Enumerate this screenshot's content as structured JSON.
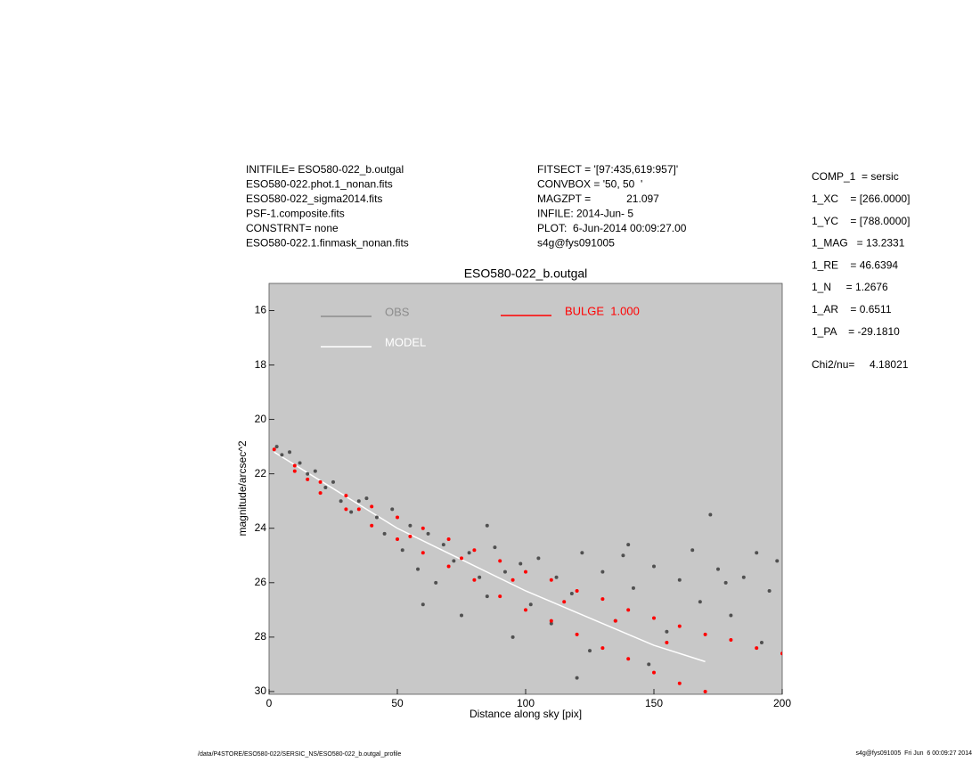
{
  "header": {
    "left": [
      "INITFILE= ESO580-022_b.outgal",
      "ESO580-022.phot.1_nonan.fits",
      "ESO580-022_sigma2014.fits",
      "PSF-1.composite.fits",
      "CONSTRNT= none",
      "ESO580-022.1.finmask_nonan.fits"
    ],
    "middle": [
      "FITSECT = '[97:435,619:957]'",
      "CONVBOX = '50, 50  '",
      "MAGZPT =            21.097",
      "INFILE: 2014-Jun- 5",
      "PLOT:  6-Jun-2014 00:09:27.00",
      "s4g@fys091005"
    ]
  },
  "parameters": [
    "COMP_1  = sersic",
    "1_XC    = [266.0000]",
    "1_YC    = [788.0000]",
    "1_MAG   = 13.2331",
    "1_RE    = 46.6394",
    "1_N     = 1.2676",
    "1_AR    = 0.6511",
    "1_PA    = -29.1810"
  ],
  "fit": "Chi2/nu=     4.18021",
  "footer": {
    "left": "/data/P4STORE/ESO580-022/SERSIC_NS/ESO580-022_b.outgal_profile",
    "right": "s4g@fys091005  Fri Jun  6 00:09:27 2014"
  },
  "chart_data": {
    "type": "scatter",
    "title": "ESO580-022_b.outgal",
    "xlabel": "Distance along sky [pix]",
    "ylabel": "magnitude/arcsec^2",
    "xlim": [
      0,
      200
    ],
    "xticks": [
      0,
      50,
      100,
      150,
      200
    ],
    "ylim": [
      15,
      30.1
    ],
    "yticks": [
      16,
      18,
      20,
      22,
      24,
      26,
      28,
      30
    ],
    "y_inverted": true,
    "background": "#c8c8c8",
    "series": [
      {
        "name": "OBS",
        "color": "#505050",
        "legend_color": "#8c8c8c",
        "mark": "dot",
        "x": [
          3,
          5,
          8,
          12,
          15,
          18,
          22,
          25,
          28,
          32,
          35,
          38,
          42,
          45,
          48,
          52,
          55,
          58,
          62,
          65,
          68,
          72,
          75,
          78,
          82,
          85,
          88,
          92,
          95,
          98,
          102,
          105,
          110,
          112,
          118,
          122,
          125,
          130,
          135,
          138,
          142,
          148,
          150,
          155,
          160,
          165,
          168,
          172,
          175,
          180,
          185,
          190,
          195,
          198,
          60,
          120,
          85,
          140,
          178,
          192
        ],
        "values": [
          21.0,
          21.3,
          21.2,
          21.6,
          22.0,
          21.9,
          22.5,
          22.3,
          23.0,
          23.4,
          23.0,
          22.9,
          23.6,
          24.2,
          23.3,
          24.8,
          23.9,
          25.5,
          24.2,
          26.0,
          24.6,
          25.2,
          27.2,
          24.9,
          25.8,
          26.5,
          24.7,
          25.6,
          28.0,
          25.3,
          26.8,
          25.1,
          27.5,
          25.8,
          26.4,
          24.9,
          28.5,
          25.6,
          27.4,
          25.0,
          26.2,
          29.0,
          25.4,
          27.8,
          25.9,
          24.8,
          26.7,
          23.5,
          25.5,
          27.2,
          25.8,
          24.9,
          26.3,
          25.2,
          26.8,
          29.5,
          23.9,
          24.6,
          26.0,
          28.2
        ]
      },
      {
        "name": "MODEL",
        "color": "#ffffff",
        "legend_color": "#ffffff",
        "mark": "line",
        "x": [
          2,
          50,
          100,
          150,
          170
        ],
        "values": [
          21.2,
          24.0,
          26.3,
          28.3,
          28.9
        ]
      },
      {
        "name": "BULGE  1.000",
        "color": "#ff0000",
        "legend_color": "#ff0000",
        "mark": "dot",
        "x": [
          2,
          10,
          20,
          30,
          40,
          50,
          60,
          70,
          80,
          90,
          100,
          110,
          120,
          130,
          140,
          150,
          160,
          170,
          180,
          190,
          200,
          10,
          20,
          30,
          40,
          50,
          60,
          70,
          80,
          90,
          100,
          110,
          120,
          130,
          140,
          150,
          160,
          170,
          15,
          35,
          55,
          75,
          95,
          115,
          135,
          155
        ],
        "values": [
          21.1,
          21.7,
          22.3,
          22.8,
          23.2,
          23.6,
          24.0,
          24.4,
          24.8,
          25.2,
          25.6,
          25.9,
          26.3,
          26.6,
          27.0,
          27.3,
          27.6,
          27.9,
          28.1,
          28.4,
          28.6,
          21.9,
          22.7,
          23.3,
          23.9,
          24.4,
          24.9,
          25.4,
          25.9,
          26.5,
          27.0,
          27.4,
          27.9,
          28.4,
          28.8,
          29.3,
          29.7,
          30.0,
          22.2,
          23.3,
          24.3,
          25.1,
          25.9,
          26.7,
          27.4,
          28.2
        ]
      }
    ]
  }
}
